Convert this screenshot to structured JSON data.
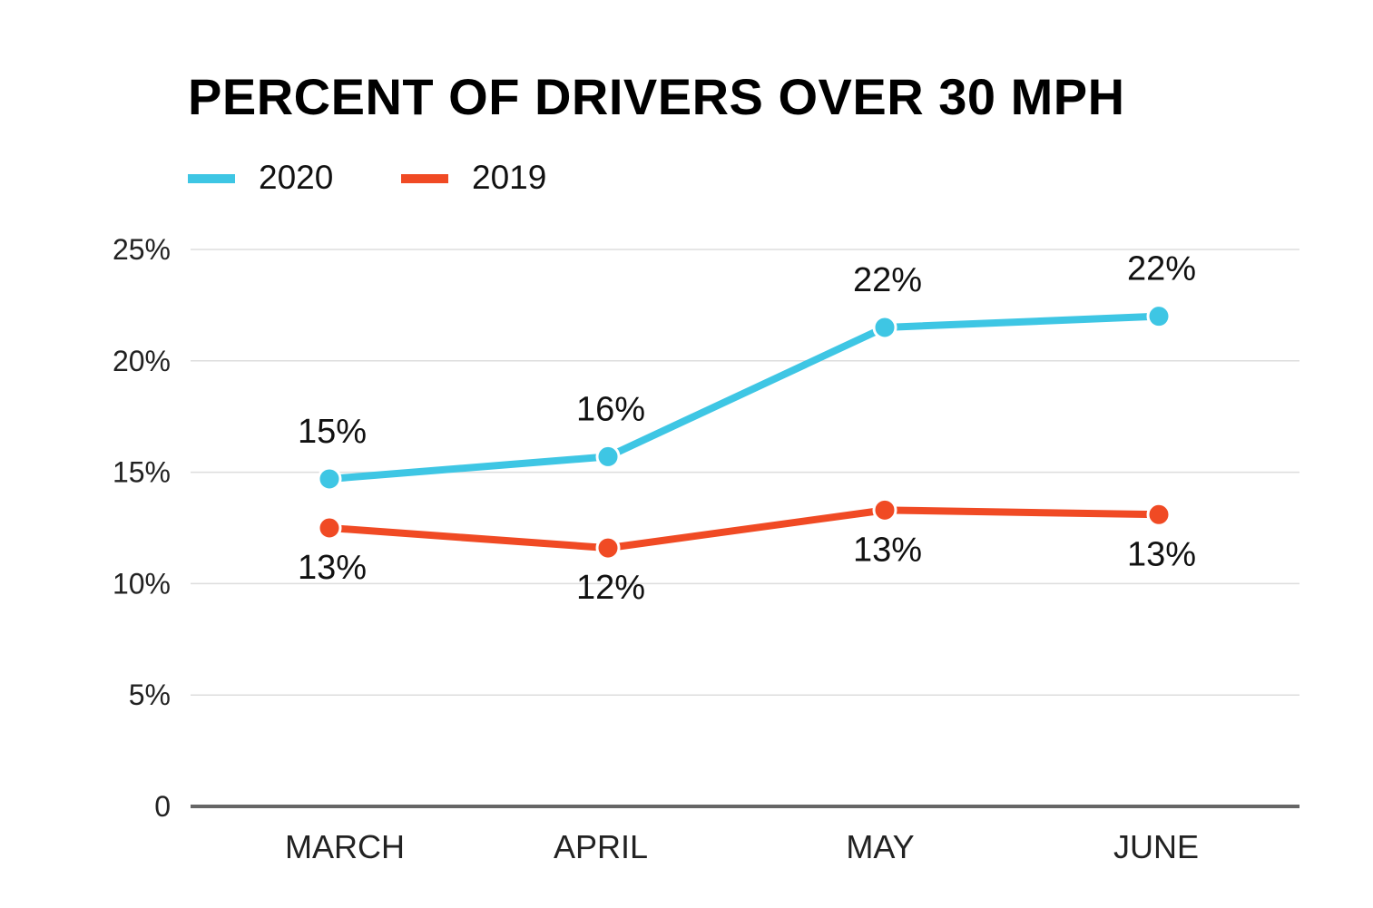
{
  "colors": {
    "series_2020": "#3ec6e4",
    "series_2019": "#f04a24",
    "grid": "#dddddd",
    "axis": "#666666"
  },
  "chart_data": {
    "type": "line",
    "title": "PERCENT OF DRIVERS OVER 30 MPH",
    "categories": [
      "MARCH",
      "APRIL",
      "MAY",
      "JUNE"
    ],
    "ylim": [
      0,
      25
    ],
    "yticks": [
      0,
      5,
      10,
      15,
      20,
      25
    ],
    "ytick_labels": [
      "0",
      "5%",
      "10%",
      "15%",
      "20%",
      "25%"
    ],
    "grid": true,
    "legend": "top-left",
    "series": [
      {
        "name": "2020",
        "color": "#3ec6e4",
        "values": [
          14.7,
          15.7,
          21.5,
          22.0
        ],
        "labels": [
          "15%",
          "16%",
          "22%",
          "22%"
        ]
      },
      {
        "name": "2019",
        "color": "#f04a24",
        "values": [
          12.5,
          11.6,
          13.3,
          13.1
        ],
        "labels": [
          "13%",
          "12%",
          "13%",
          "13%"
        ]
      }
    ]
  }
}
